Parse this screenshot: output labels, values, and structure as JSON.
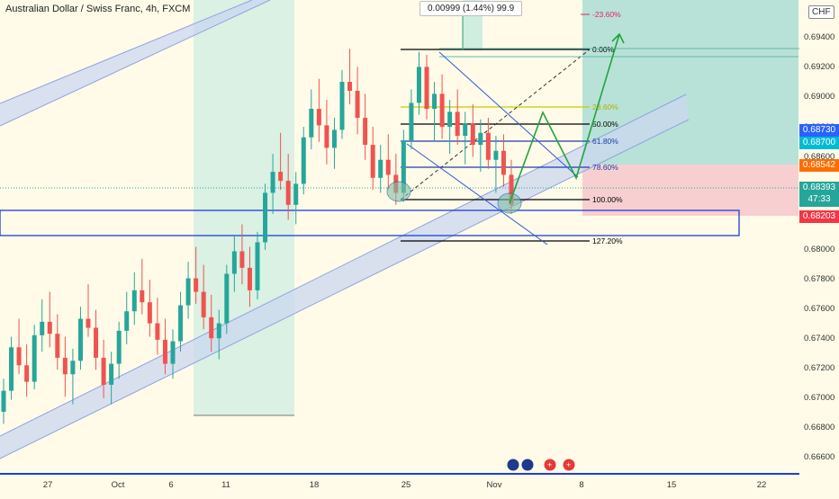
{
  "title": "Australian Dollar / Swiss Franc, 4h, FXCM",
  "currency": "CHF",
  "measure_label": "0.00999 (1.44%) 99.9",
  "price_scale_ticks": [
    "0.69400",
    "0.69200",
    "0.69000",
    "0.68800",
    "0.68600",
    "0.68000",
    "0.67800",
    "0.67600",
    "0.67400",
    "0.67200",
    "0.67000",
    "0.66800",
    "0.66600"
  ],
  "time_labels": [
    "27",
    "Oct",
    "6",
    "11",
    "18",
    "25",
    "Nov",
    "8",
    "15",
    "22"
  ],
  "price_tags": [
    {
      "value": "0.68730",
      "color": "#2962ff"
    },
    {
      "value": "0.68700",
      "color": "#00bcd4"
    },
    {
      "value": "0.68542",
      "color": "#ff6d00"
    },
    {
      "value": "0.68393",
      "color": "#26a69a",
      "sub": "47:33"
    },
    {
      "value": "0.68203",
      "color": "#f23645"
    }
  ],
  "fib_levels": [
    {
      "label": "-23.60%",
      "color": "#e91e63"
    },
    {
      "label": "0.00%",
      "color": "#000000"
    },
    {
      "label": "23.60%",
      "color": "#c9c900"
    },
    {
      "label": "50.00%",
      "color": "#000000"
    },
    {
      "label": "61.80%",
      "color": "#1a3fa8"
    },
    {
      "label": "78.60%",
      "color": "#1a3fa8"
    },
    {
      "label": "100.00%",
      "color": "#000000"
    },
    {
      "label": "127.20%",
      "color": "#000000"
    }
  ],
  "chart_data": {
    "type": "candlestick",
    "symbol": "AUDCHF",
    "timeframe": "4h",
    "ylim": [
      0.6655,
      0.6962
    ],
    "ohlc": [
      [
        0.669,
        0.6712,
        0.6682,
        0.6704
      ],
      [
        0.6704,
        0.674,
        0.6698,
        0.6733
      ],
      [
        0.6733,
        0.6752,
        0.6715,
        0.6721
      ],
      [
        0.6721,
        0.6735,
        0.67,
        0.671
      ],
      [
        0.671,
        0.6748,
        0.6705,
        0.6741
      ],
      [
        0.6741,
        0.6765,
        0.673,
        0.675
      ],
      [
        0.675,
        0.677,
        0.6733,
        0.6742
      ],
      [
        0.6742,
        0.6755,
        0.6718,
        0.6726
      ],
      [
        0.6726,
        0.674,
        0.67,
        0.6715
      ],
      [
        0.6715,
        0.6732,
        0.6695,
        0.6724
      ],
      [
        0.6724,
        0.676,
        0.6718,
        0.6752
      ],
      [
        0.6752,
        0.6775,
        0.674,
        0.6746
      ],
      [
        0.6746,
        0.6758,
        0.6718,
        0.6726
      ],
      [
        0.6726,
        0.6738,
        0.6699,
        0.6708
      ],
      [
        0.6708,
        0.673,
        0.6695,
        0.6722
      ],
      [
        0.6722,
        0.675,
        0.6712,
        0.6744
      ],
      [
        0.6744,
        0.677,
        0.6735,
        0.6757
      ],
      [
        0.6757,
        0.6783,
        0.6748,
        0.6771
      ],
      [
        0.6771,
        0.6792,
        0.6755,
        0.6763
      ],
      [
        0.6763,
        0.6778,
        0.674,
        0.6749
      ],
      [
        0.6749,
        0.6766,
        0.6728,
        0.6738
      ],
      [
        0.6738,
        0.6752,
        0.6715,
        0.6722
      ],
      [
        0.6722,
        0.6745,
        0.6712,
        0.6737
      ],
      [
        0.6737,
        0.677,
        0.673,
        0.6761
      ],
      [
        0.6761,
        0.679,
        0.6752,
        0.6779
      ],
      [
        0.6779,
        0.68,
        0.6762,
        0.677
      ],
      [
        0.677,
        0.6788,
        0.6745,
        0.6753
      ],
      [
        0.6753,
        0.6768,
        0.673,
        0.6739
      ],
      [
        0.6739,
        0.6758,
        0.6725,
        0.6749
      ],
      [
        0.6749,
        0.6788,
        0.6742,
        0.6782
      ],
      [
        0.6782,
        0.6808,
        0.677,
        0.6797
      ],
      [
        0.6797,
        0.6815,
        0.6775,
        0.6786
      ],
      [
        0.6786,
        0.68,
        0.676,
        0.6771
      ],
      [
        0.6771,
        0.681,
        0.6765,
        0.6803
      ],
      [
        0.6803,
        0.6842,
        0.6798,
        0.6836
      ],
      [
        0.6836,
        0.6862,
        0.6822,
        0.685
      ],
      [
        0.685,
        0.6876,
        0.6838,
        0.6844
      ],
      [
        0.6844,
        0.6862,
        0.6818,
        0.6828
      ],
      [
        0.6828,
        0.685,
        0.6815,
        0.6842
      ],
      [
        0.6842,
        0.688,
        0.6835,
        0.6873
      ],
      [
        0.6873,
        0.6905,
        0.6865,
        0.6892
      ],
      [
        0.6892,
        0.6912,
        0.687,
        0.6881
      ],
      [
        0.6881,
        0.6898,
        0.6855,
        0.6866
      ],
      [
        0.6866,
        0.6886,
        0.6852,
        0.6878
      ],
      [
        0.6878,
        0.6918,
        0.6872,
        0.691
      ],
      [
        0.691,
        0.6932,
        0.6895,
        0.6904
      ],
      [
        0.6904,
        0.692,
        0.6875,
        0.6886
      ],
      [
        0.6886,
        0.6902,
        0.6858,
        0.6868
      ],
      [
        0.6868,
        0.688,
        0.6838,
        0.6846
      ],
      [
        0.6846,
        0.6868,
        0.6836,
        0.6858
      ],
      [
        0.6858,
        0.6875,
        0.6838,
        0.6848
      ],
      [
        0.6848,
        0.6862,
        0.6828,
        0.6836
      ],
      [
        0.6836,
        0.6878,
        0.683,
        0.6871
      ],
      [
        0.6871,
        0.6905,
        0.6865,
        0.6896
      ],
      [
        0.6896,
        0.693,
        0.6888,
        0.692
      ],
      [
        0.692,
        0.6928,
        0.6885,
        0.6892
      ],
      [
        0.6892,
        0.691,
        0.687,
        0.6902
      ],
      [
        0.6902,
        0.6915,
        0.6872,
        0.688
      ],
      [
        0.688,
        0.6898,
        0.6862,
        0.689
      ],
      [
        0.689,
        0.6905,
        0.6868,
        0.6874
      ],
      [
        0.6874,
        0.689,
        0.6855,
        0.6882
      ],
      [
        0.6882,
        0.6895,
        0.686,
        0.6868
      ],
      [
        0.6868,
        0.6885,
        0.685,
        0.6876
      ],
      [
        0.6876,
        0.6886,
        0.6852,
        0.6858
      ],
      [
        0.6858,
        0.6874,
        0.6836,
        0.6864
      ],
      [
        0.6864,
        0.6875,
        0.684,
        0.6848
      ],
      [
        0.6848,
        0.6858,
        0.6822,
        0.6828
      ]
    ],
    "levels": {
      "fib_-23.6": 0.6946,
      "fib_0": 0.6932,
      "fib_23.6": 0.6892,
      "fib_50": 0.6874,
      "fib_61.8": 0.6864,
      "fib_78.6": 0.6852,
      "fib_100": 0.683,
      "fib_127.2": 0.6803
    }
  }
}
